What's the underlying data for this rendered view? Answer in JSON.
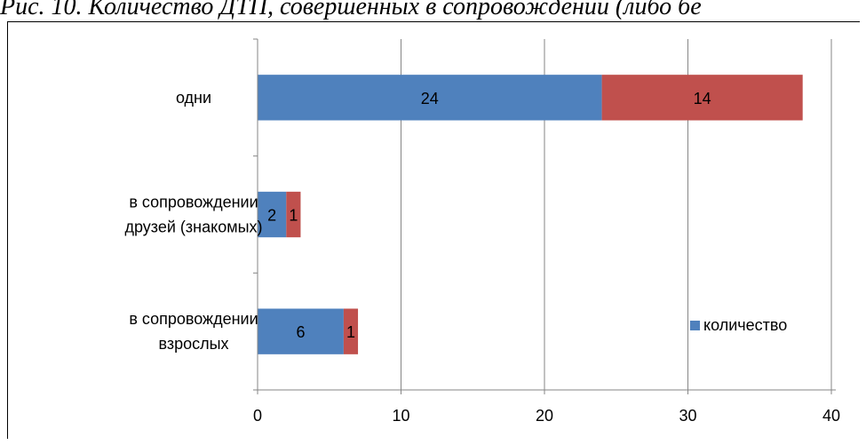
{
  "caption": "Рис. 10. Количество ДТП, совершенных в сопровождении (либо бе",
  "chart_data": {
    "type": "bar",
    "orientation": "horizontal",
    "stacked": true,
    "title": "",
    "xlabel": "",
    "ylabel": "",
    "categories": [
      [
        "в сопровождении",
        "взрослых"
      ],
      [
        "в сопровождении",
        "друзей (знакомых)"
      ],
      [
        "одни"
      ]
    ],
    "series": [
      {
        "name": "количество",
        "values": [
          6,
          2,
          24
        ],
        "color": "#4f81bd"
      },
      {
        "values": [
          1,
          1,
          14
        ],
        "color": "#c0504d"
      }
    ],
    "xlim": [
      0,
      40
    ],
    "xticks": [
      0,
      10,
      20,
      30,
      40
    ],
    "grid": true,
    "legend": "right",
    "data_labels": true
  }
}
